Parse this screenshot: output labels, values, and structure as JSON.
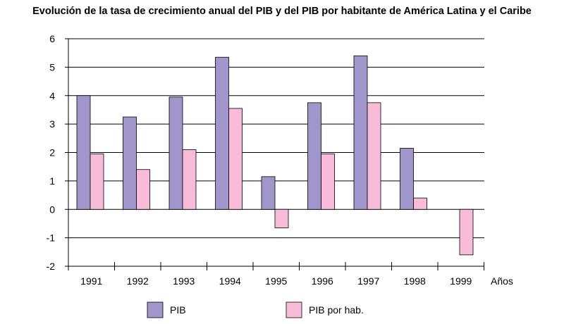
{
  "chart_data": {
    "type": "bar",
    "title": "Evolución de la tasa de crecimiento anual del PIB y del PIB por habitante de América Latina y el Caribe",
    "xlabel": "Años",
    "ylabel": "",
    "categories": [
      "1991",
      "1992",
      "1993",
      "1994",
      "1995",
      "1996",
      "1997",
      "1998",
      "1999"
    ],
    "ylim": [
      -2,
      6
    ],
    "yticks": [
      -2,
      -1,
      0,
      1,
      2,
      3,
      4,
      5,
      6
    ],
    "grid": true,
    "legend_position": "bottom",
    "series": [
      {
        "name": "PIB",
        "color": "#a096cc",
        "values": [
          4.0,
          3.25,
          3.95,
          5.35,
          1.15,
          3.75,
          5.4,
          2.15,
          null
        ]
      },
      {
        "name": "PIB por hab.",
        "color": "#f8bcd8",
        "values": [
          1.95,
          1.4,
          2.1,
          3.55,
          -0.65,
          1.95,
          3.75,
          0.4,
          -1.6
        ]
      }
    ]
  }
}
